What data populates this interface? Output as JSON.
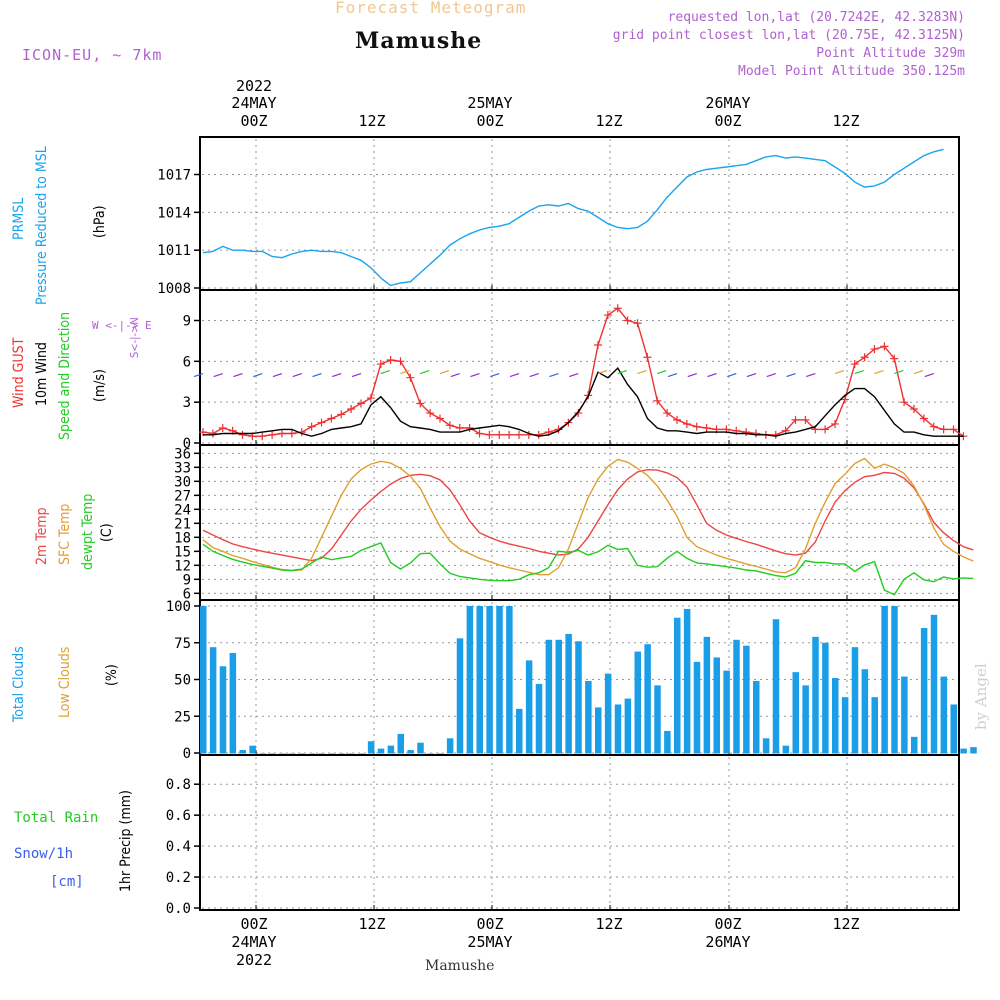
{
  "header": {
    "title": "Forecast Meteogram",
    "station": "Mamushe",
    "model": "ICON-EU, ~ 7km",
    "requested": "requested lon,lat (20.7242E, 42.3283N)",
    "gridpoint": "grid point closest lon,lat (20.75E, 42.3125N)",
    "point_alt": "Point Altitude 329m",
    "model_alt": "Model Point Altitude 350.125m",
    "footer_station": "Mamushe",
    "credit": "by Angel"
  },
  "colors": {
    "pressure": "#1aa3ee",
    "gust": "#ee3030",
    "wind": "#000000",
    "wind_dir": "#22cc22",
    "t2m": "#ee4444",
    "tsfc": "#e0a030",
    "dewpt": "#22cc22",
    "clouds": "#1a9ee8",
    "low_clouds": "#e0a030",
    "rain": "#22cc22",
    "snow": "#3a5ee8",
    "compass": "#b060d0"
  },
  "time_axis": {
    "top_year": "2022",
    "days": [
      {
        "date": "24MAY",
        "label": "00Z"
      },
      {
        "date": "",
        "label": "12Z"
      },
      {
        "date": "25MAY",
        "label": "00Z"
      },
      {
        "date": "",
        "label": "12Z"
      },
      {
        "date": "26MAY",
        "label": "00Z"
      },
      {
        "date": "",
        "label": "12Z"
      }
    ],
    "bottom_labels": [
      "00Z",
      "12Z",
      "00Z",
      "12Z",
      "00Z",
      "12Z"
    ],
    "bottom_dates": [
      "24MAY",
      "25MAY",
      "26MAY"
    ],
    "bottom_year": "2022"
  },
  "panel_labels": {
    "pressure_title": "PRMSL",
    "pressure_sub": "Pressure Reduced to MSL",
    "pressure_unit": "(hPa)",
    "wind_gust": "Wind GUST",
    "wind_10m": "10m Wind",
    "wind_dir": "Speed and Direction",
    "wind_unit": "(m/s)",
    "compass_n": "N",
    "compass_s": "S",
    "compass_ew": "W <-|-> E",
    "t2m": "2m Temp",
    "tsfc": "SFC Temp",
    "dewpt": "dewpt Temp",
    "temp_unit": "(C)",
    "total_clouds": "Total Clouds",
    "low_clouds": "Low Clouds",
    "cloud_unit": "(%)",
    "rain": "Total  Rain",
    "snow": "Snow/1h",
    "snow_unit": "[cm]",
    "precip": "1hr Precip (mm)"
  },
  "chart_data": [
    {
      "type": "line",
      "panel": "pressure",
      "x_start": "2022-05-23 19Z",
      "x_step_hours": 1,
      "ylim": [
        1008,
        1019.5
      ],
      "yticks": [
        1008,
        1011,
        1014,
        1017
      ],
      "series": [
        {
          "name": "PRMSL",
          "values": [
            1010.8,
            1010.9,
            1011.3,
            1011.0,
            1011.0,
            1010.9,
            1010.9,
            1010.5,
            1010.4,
            1010.7,
            1010.9,
            1011.0,
            1010.9,
            1010.9,
            1010.8,
            1010.5,
            1010.2,
            1009.6,
            1008.8,
            1008.2,
            1008.4,
            1008.5,
            1009.2,
            1009.9,
            1010.6,
            1011.4,
            1011.9,
            1012.3,
            1012.6,
            1012.8,
            1012.9,
            1013.1,
            1013.6,
            1014.1,
            1014.5,
            1014.6,
            1014.5,
            1014.7,
            1014.3,
            1014.1,
            1013.6,
            1013.1,
            1012.8,
            1012.7,
            1012.8,
            1013.3,
            1014.2,
            1015.2,
            1016.0,
            1016.8,
            1017.2,
            1017.4,
            1017.5,
            1017.6,
            1017.7,
            1017.8,
            1018.1,
            1018.4,
            1018.5,
            1018.3,
            1018.4,
            1018.3,
            1018.2,
            1018.1,
            1017.6,
            1017.1,
            1016.4,
            1016.0,
            1016.1,
            1016.4,
            1017.0,
            1017.5,
            1018.0,
            1018.5,
            1018.8,
            1019.0
          ]
        }
      ]
    },
    {
      "type": "line",
      "panel": "wind",
      "x_start": "2022-05-23 19Z",
      "x_step_hours": 1,
      "ylim": [
        0,
        10.8
      ],
      "yticks": [
        0,
        3,
        6,
        9
      ],
      "series": [
        {
          "name": "Wind GUST",
          "values": [
            0.8,
            0.7,
            1.1,
            0.9,
            0.6,
            0.5,
            0.5,
            0.6,
            0.7,
            0.7,
            0.8,
            1.2,
            1.5,
            1.8,
            2.1,
            2.5,
            2.9,
            3.3,
            5.8,
            6.1,
            6.0,
            4.8,
            2.9,
            2.2,
            1.8,
            1.3,
            1.1,
            1.1,
            0.7,
            0.6,
            0.6,
            0.6,
            0.6,
            0.6,
            0.6,
            0.8,
            1.0,
            1.5,
            2.2,
            3.5,
            7.2,
            9.4,
            9.9,
            9.0,
            8.8,
            6.3,
            3.1,
            2.2,
            1.7,
            1.4,
            1.2,
            1.1,
            1.0,
            1.0,
            0.9,
            0.8,
            0.7,
            0.6,
            0.6,
            0.9,
            1.7,
            1.7,
            1.0,
            1.0,
            1.4,
            3.2,
            5.8,
            6.3,
            6.9,
            7.1,
            6.2,
            3.0,
            2.5,
            1.8,
            1.2,
            1.0,
            1.0,
            0.5
          ]
        },
        {
          "name": "10m Wind",
          "values": [
            0.6,
            0.6,
            0.7,
            0.7,
            0.7,
            0.7,
            0.8,
            0.9,
            1.0,
            1.0,
            0.7,
            0.5,
            0.7,
            1.0,
            1.1,
            1.2,
            1.4,
            2.8,
            3.4,
            2.6,
            1.6,
            1.2,
            1.1,
            1.0,
            0.8,
            0.8,
            0.8,
            1.0,
            1.1,
            1.2,
            1.3,
            1.2,
            1.0,
            0.7,
            0.5,
            0.6,
            0.9,
            1.5,
            2.3,
            3.4,
            5.2,
            4.8,
            5.5,
            4.3,
            3.4,
            1.8,
            1.1,
            0.9,
            0.9,
            0.8,
            0.7,
            0.8,
            0.8,
            0.8,
            0.7,
            0.7,
            0.6,
            0.6,
            0.5,
            0.7,
            0.8,
            1.0,
            1.2,
            2.0,
            2.8,
            3.5,
            4.0,
            4.0,
            3.4,
            2.4,
            1.4,
            0.8,
            0.8,
            0.6,
            0.5,
            0.5,
            0.5,
            0.5
          ]
        }
      ]
    },
    {
      "type": "line",
      "panel": "temperature",
      "x_start": "2022-05-23 19Z",
      "x_step_hours": 1,
      "ylim": [
        5,
        36.5
      ],
      "yticks": [
        6,
        9,
        12,
        15,
        18,
        21,
        24,
        27,
        30,
        33,
        36
      ],
      "series": [
        {
          "name": "2m Temp",
          "values": [
            19.5,
            18.5,
            17.5,
            16.6,
            16.0,
            15.5,
            15.0,
            14.6,
            14.2,
            13.8,
            13.4,
            13.0,
            13.5,
            15.5,
            18.5,
            21.5,
            24.0,
            26.0,
            27.8,
            29.4,
            30.6,
            31.3,
            31.5,
            31.2,
            30.3,
            28.2,
            25.0,
            21.5,
            19.0,
            18.0,
            17.2,
            16.6,
            16.1,
            15.6,
            15.0,
            14.6,
            14.2,
            14.4,
            15.5,
            18.0,
            21.5,
            25.0,
            28.2,
            30.5,
            32.0,
            32.5,
            32.4,
            31.8,
            30.8,
            28.8,
            25.0,
            21.0,
            19.5,
            18.5,
            17.8,
            17.1,
            16.5,
            15.8,
            15.1,
            14.5,
            14.2,
            14.6,
            17.0,
            21.5,
            25.5,
            28.0,
            29.8,
            31.0,
            31.3,
            31.9,
            31.7,
            30.7,
            28.6,
            25.2,
            21.2,
            19.0,
            17.3,
            16.0,
            15.3
          ]
        },
        {
          "name": "SFC Temp",
          "values": [
            17.5,
            15.8,
            15.0,
            14.1,
            13.5,
            12.8,
            12.2,
            11.6,
            11.1,
            10.9,
            11.0,
            13.5,
            18.0,
            22.5,
            27.0,
            30.5,
            32.5,
            33.7,
            34.3,
            33.9,
            32.8,
            31.1,
            28.5,
            24.3,
            20.3,
            17.2,
            15.5,
            14.5,
            13.5,
            12.8,
            12.1,
            11.5,
            11.0,
            10.5,
            10.0,
            10.0,
            11.5,
            15.5,
            21.0,
            26.5,
            30.5,
            33.2,
            34.7,
            34.1,
            32.8,
            31.3,
            29.0,
            26.0,
            22.5,
            18.0,
            16.0,
            15.1,
            14.2,
            13.5,
            12.9,
            12.3,
            11.8,
            11.2,
            10.6,
            10.4,
            11.5,
            15.5,
            21.0,
            25.5,
            29.5,
            31.5,
            33.8,
            34.9,
            32.8,
            33.7,
            32.9,
            31.7,
            29.0,
            25.0,
            20.0,
            16.5,
            15.0,
            13.8,
            12.9
          ]
        },
        {
          "name": "dewpt Temp",
          "values": [
            16.5,
            15.0,
            14.1,
            13.3,
            12.7,
            12.2,
            11.8,
            11.4,
            11.0,
            10.9,
            11.2,
            12.5,
            13.8,
            13.2,
            13.6,
            13.9,
            15.2,
            16.0,
            16.8,
            12.6,
            11.2,
            12.5,
            14.5,
            14.6,
            12.3,
            10.3,
            9.6,
            9.3,
            9.0,
            8.8,
            8.7,
            8.7,
            9.0,
            10.0,
            10.4,
            11.5,
            15.0,
            14.8,
            15.2,
            14.2,
            14.9,
            16.3,
            15.4,
            15.6,
            12.0,
            11.6,
            11.7,
            13.5,
            15.0,
            13.5,
            12.5,
            12.3,
            12.0,
            11.7,
            11.4,
            11.0,
            10.8,
            10.3,
            9.8,
            9.5,
            10.3,
            13.0,
            12.6,
            12.6,
            12.3,
            12.3,
            10.7,
            12.1,
            12.8,
            6.7,
            5.7,
            9.0,
            10.4,
            8.9,
            8.5,
            9.5,
            9.1,
            9.3,
            9.2
          ]
        }
      ]
    },
    {
      "type": "bar",
      "panel": "clouds",
      "x_start": "2022-05-23 19Z",
      "x_step_hours": 1,
      "ylim": [
        0,
        100
      ],
      "yticks": [
        0,
        25,
        50,
        75,
        100
      ],
      "series": [
        {
          "name": "Total Clouds",
          "values": [
            100,
            72,
            59,
            68,
            2,
            5,
            0,
            0,
            0,
            0,
            0,
            0,
            0,
            0,
            0,
            0,
            0,
            8,
            3,
            5,
            13,
            2,
            7,
            0,
            0,
            10,
            78,
            100,
            100,
            100,
            100,
            100,
            30,
            63,
            47,
            77,
            77,
            81,
            76,
            49,
            31,
            54,
            33,
            37,
            69,
            74,
            46,
            15,
            92,
            98,
            62,
            79,
            65,
            56,
            77,
            73,
            49,
            10,
            91,
            5,
            55,
            46,
            79,
            75,
            51,
            38,
            72,
            57,
            38,
            100,
            100,
            52,
            11,
            85,
            94,
            52,
            33,
            3,
            4
          ]
        }
      ]
    },
    {
      "type": "bar",
      "panel": "precip",
      "x_start": "2022-05-23 19Z",
      "x_step_hours": 1,
      "ylim": [
        0,
        0.95
      ],
      "yticks": [
        0,
        0.2,
        0.4,
        0.6,
        0.8
      ],
      "series": [
        {
          "name": "1hr Precip",
          "values": []
        }
      ]
    }
  ]
}
